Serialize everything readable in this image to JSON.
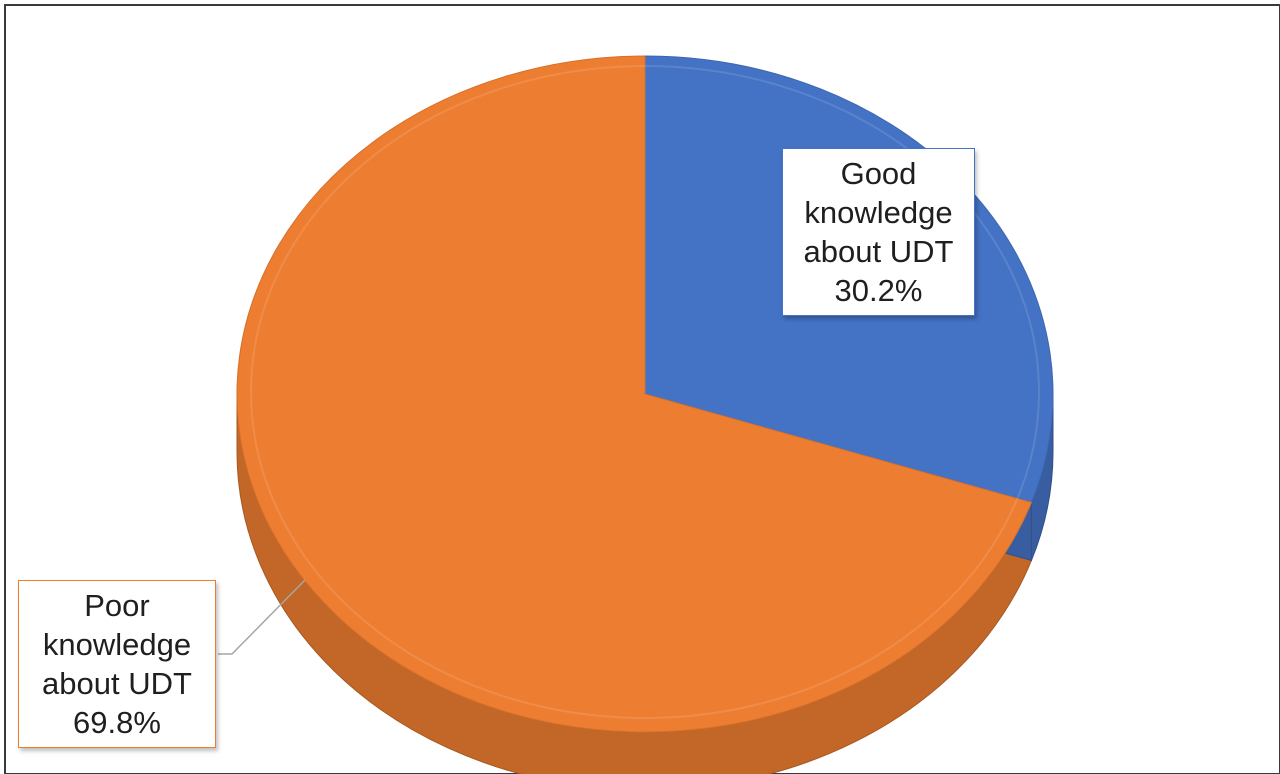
{
  "chart_data": {
    "type": "pie",
    "style": "3d",
    "categories": [
      "Good knowledge about UDT",
      "Poor knowledge about UDT"
    ],
    "values": [
      30.2,
      69.8
    ],
    "unit": "%",
    "title": "",
    "colors": [
      "#4472c4",
      "#ed7d31"
    ],
    "labels": [
      {
        "lines": [
          "Good",
          "knowledge",
          "about UDT"
        ],
        "value_text": "30.2%",
        "placement": "inside-top-right",
        "border_color": "#4472c4"
      },
      {
        "lines": [
          "Poor",
          "knowledge",
          "about UDT"
        ],
        "value_text": "69.8%",
        "placement": "outside-bottom-left",
        "border_color": "#ed7d31",
        "leader_line": true
      }
    ],
    "legend": "none"
  }
}
